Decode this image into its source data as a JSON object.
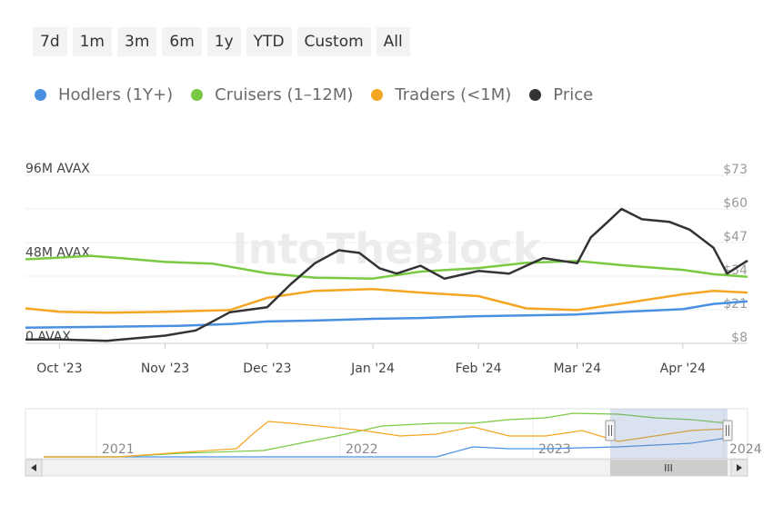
{
  "range_buttons": [
    "7d",
    "1m",
    "3m",
    "6m",
    "1y",
    "YTD",
    "Custom",
    "All"
  ],
  "legend": [
    {
      "label": "Hodlers (1Y+)",
      "color": "#4a90e2"
    },
    {
      "label": "Cruisers (1–12M)",
      "color": "#7ac943"
    },
    {
      "label": "Traders (<1M)",
      "color": "#f5a623"
    },
    {
      "label": "Price",
      "color": "#333333"
    }
  ],
  "watermark": "IntoTheBlock",
  "chart_data": {
    "type": "line",
    "x_axis_labels": [
      "Oct '23",
      "Nov '23",
      "Dec '23",
      "Jan '24",
      "Feb '24",
      "Mar '24",
      "Apr '24"
    ],
    "x_range": [
      "2023-09-21",
      "2024-04-20"
    ],
    "left_axis": {
      "labels": [
        "96M AVAX",
        "48M AVAX",
        "0 AVAX"
      ],
      "range": [
        0,
        96
      ],
      "unit": "M AVAX"
    },
    "right_axis": {
      "labels": [
        "$73",
        "$60",
        "$47",
        "$34",
        "$21",
        "$8"
      ],
      "range": [
        8,
        73
      ]
    },
    "grid": true,
    "series": [
      {
        "name": "Hodlers (1Y+)",
        "color": "#4a90e2",
        "axis": "left",
        "x": [
          "2023-09-21",
          "2023-10-15",
          "2023-11-05",
          "2023-11-20",
          "2023-12-01",
          "2023-12-15",
          "2024-01-01",
          "2024-01-15",
          "2024-02-01",
          "2024-02-15",
          "2024-03-01",
          "2024-03-15",
          "2024-04-01",
          "2024-04-10",
          "2024-04-20"
        ],
        "y": [
          9,
          9.5,
          10,
          11,
          12.5,
          13,
          14,
          14.5,
          15.5,
          16,
          16.5,
          18,
          19.5,
          22.5,
          24
        ]
      },
      {
        "name": "Cruisers (1–12M)",
        "color": "#7ac943",
        "axis": "left",
        "x": [
          "2023-09-21",
          "2023-10-01",
          "2023-10-10",
          "2023-10-20",
          "2023-11-01",
          "2023-11-15",
          "2023-12-01",
          "2023-12-15",
          "2024-01-01",
          "2024-01-15",
          "2024-02-01",
          "2024-02-15",
          "2024-03-01",
          "2024-03-15",
          "2024-04-01",
          "2024-04-10",
          "2024-04-20"
        ],
        "y": [
          48,
          49,
          50,
          48.5,
          46.5,
          45.5,
          40,
          37.5,
          37,
          41,
          43,
          46,
          47,
          44.5,
          42,
          39.5,
          38
        ]
      },
      {
        "name": "Traders (<1M)",
        "color": "#f5a623",
        "axis": "left",
        "x": [
          "2023-09-21",
          "2023-10-01",
          "2023-10-15",
          "2023-11-01",
          "2023-11-20",
          "2023-12-01",
          "2023-12-15",
          "2024-01-01",
          "2024-01-15",
          "2024-02-01",
          "2024-02-15",
          "2024-03-01",
          "2024-03-15",
          "2024-04-01",
          "2024-04-10",
          "2024-04-20"
        ],
        "y": [
          20,
          18,
          17.5,
          18,
          19,
          26,
          30,
          31,
          29,
          27,
          20,
          19,
          23,
          28,
          30,
          29
        ]
      },
      {
        "name": "Price",
        "color": "#333333",
        "axis": "right",
        "x": [
          "2023-09-21",
          "2023-10-01",
          "2023-10-15",
          "2023-11-01",
          "2023-11-10",
          "2023-11-20",
          "2023-12-01",
          "2023-12-08",
          "2023-12-15",
          "2023-12-22",
          "2023-12-28",
          "2024-01-03",
          "2024-01-08",
          "2024-01-15",
          "2024-01-22",
          "2024-02-01",
          "2024-02-10",
          "2024-02-20",
          "2024-03-01",
          "2024-03-05",
          "2024-03-10",
          "2024-03-14",
          "2024-03-20",
          "2024-03-28",
          "2024-04-03",
          "2024-04-10",
          "2024-04-14",
          "2024-04-20"
        ],
        "y": [
          9.5,
          9.5,
          9,
          11,
          13,
          20,
          22,
          31,
          39,
          44,
          43,
          37,
          35,
          38,
          33,
          36,
          35,
          41,
          39,
          49,
          55,
          60,
          56,
          55,
          52,
          45,
          35,
          40
        ]
      }
    ]
  },
  "navigator": {
    "year_labels": [
      "2021",
      "2022",
      "2023",
      "2024"
    ],
    "handle_glyph": "III"
  }
}
